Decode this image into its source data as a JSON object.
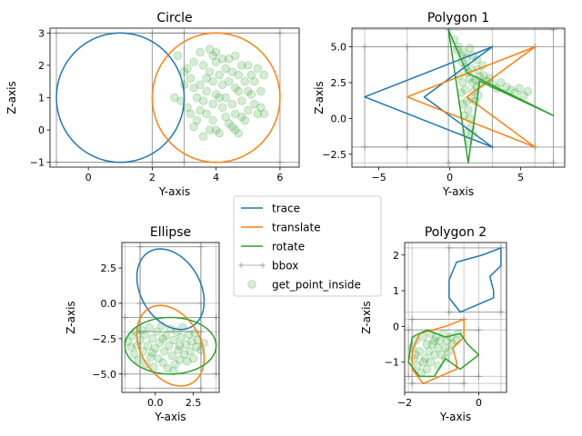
{
  "figure": {
    "background": "#ffffff"
  },
  "colors": {
    "trace": "#1f77b4",
    "translate": "#ff7f0e",
    "rotate": "#2ca02c",
    "bbox": "#7f7f7f",
    "points": "#2ca02c"
  },
  "legend": {
    "placement": "center",
    "entries": [
      {
        "key": "trace",
        "label": "trace",
        "style": "line"
      },
      {
        "key": "translate",
        "label": "translate",
        "style": "line"
      },
      {
        "key": "rotate",
        "label": "rotate",
        "style": "line"
      },
      {
        "key": "bbox",
        "label": "bbox",
        "style": "marker-line"
      },
      {
        "key": "points",
        "label": "get_point_inside",
        "style": "dot"
      }
    ]
  },
  "chart_data": [
    {
      "type": "line",
      "title": "Circle",
      "xlabel": "Y-axis",
      "ylabel": "Z-axis",
      "xlim": [
        -1.2,
        6.6
      ],
      "ylim": [
        -1.15,
        3.15
      ],
      "xticks": [
        0,
        2,
        4,
        6
      ],
      "yticks": [
        -1,
        0,
        1,
        2,
        3
      ],
      "shapes": [
        {
          "name": "trace",
          "kind": "circle",
          "cx": 1,
          "cy": 1,
          "r": 2
        },
        {
          "name": "translate",
          "kind": "circle",
          "cx": 4,
          "cy": 1,
          "r": 2
        }
      ],
      "bboxes": [
        [
          -1,
          -1,
          3,
          3
        ],
        [
          2,
          -1,
          6,
          3
        ]
      ],
      "points": [
        [
          2.7,
          1.0
        ],
        [
          2.8,
          2.3
        ],
        [
          2.9,
          0.9
        ],
        [
          3.0,
          1.4
        ],
        [
          3.0,
          1.8
        ],
        [
          3.1,
          0.7
        ],
        [
          3.1,
          1.9
        ],
        [
          3.2,
          0.5
        ],
        [
          3.2,
          1.6
        ],
        [
          3.3,
          2.1
        ],
        [
          3.3,
          1.3
        ],
        [
          3.4,
          0.3
        ],
        [
          3.4,
          1.0
        ],
        [
          3.5,
          1.4
        ],
        [
          3.5,
          0.6
        ],
        [
          3.5,
          2.4
        ],
        [
          3.6,
          2.0
        ],
        [
          3.6,
          0.9
        ],
        [
          3.6,
          -0.2
        ],
        [
          3.7,
          1.6
        ],
        [
          3.7,
          0.5
        ],
        [
          3.7,
          1.2
        ],
        [
          3.8,
          2.5
        ],
        [
          3.8,
          0.0
        ],
        [
          3.8,
          1.8
        ],
        [
          3.9,
          0.8
        ],
        [
          3.9,
          1.5
        ],
        [
          3.9,
          0.3
        ],
        [
          4.0,
          1.1
        ],
        [
          4.0,
          2.1
        ],
        [
          4.0,
          2.4
        ],
        [
          4.0,
          0.0
        ],
        [
          4.1,
          1.7
        ],
        [
          4.1,
          1.0
        ],
        [
          4.1,
          -0.1
        ],
        [
          4.2,
          1.4
        ],
        [
          4.2,
          2.2
        ],
        [
          4.2,
          0.7
        ],
        [
          4.3,
          0.4
        ],
        [
          4.3,
          1.9
        ],
        [
          4.3,
          1.0
        ],
        [
          4.4,
          0.2
        ],
        [
          4.4,
          2.2
        ],
        [
          4.4,
          1.5
        ],
        [
          4.5,
          1.8
        ],
        [
          4.5,
          0.8
        ],
        [
          4.5,
          0.1
        ],
        [
          4.6,
          1.3
        ],
        [
          4.6,
          0.5
        ],
        [
          4.6,
          2.3
        ],
        [
          4.7,
          -0.1
        ],
        [
          4.7,
          1.2
        ],
        [
          4.7,
          1.7
        ],
        [
          4.8,
          2.0
        ],
        [
          4.8,
          0.9
        ],
        [
          4.8,
          0.4
        ],
        [
          4.9,
          1.5
        ],
        [
          4.9,
          0.3
        ],
        [
          5.0,
          1.2
        ],
        [
          5.0,
          0.6
        ],
        [
          5.0,
          2.0
        ],
        [
          5.1,
          1.1
        ],
        [
          5.2,
          0.8
        ],
        [
          5.2,
          1.5
        ],
        [
          5.3,
          0.5
        ],
        [
          5.3,
          1.9
        ],
        [
          5.4,
          1.2
        ],
        [
          5.4,
          0.7
        ],
        [
          5.5,
          0.5
        ],
        [
          5.5,
          1.7
        ],
        [
          3.3,
          0.1
        ],
        [
          3.9,
          2.3
        ],
        [
          4.6,
          0.0
        ],
        [
          5.1,
          1.7
        ]
      ]
    },
    {
      "type": "line",
      "title": "Polygon 1",
      "xlabel": "Y-axis",
      "ylabel": "Z-axis",
      "xlim": [
        -6.9,
        8.1
      ],
      "ylim": [
        -3.4,
        6.3
      ],
      "xticks": [
        -5,
        0,
        5
      ],
      "yticks": [
        -2.5,
        0.0,
        2.5,
        5.0
      ],
      "shapes": [
        {
          "name": "trace",
          "kind": "polygon",
          "pts": [
            [
              3,
              5
            ],
            [
              -6,
              1.5
            ],
            [
              3,
              -2
            ],
            [
              -1.8,
              1.5
            ],
            [
              3,
              5
            ]
          ]
        },
        {
          "name": "translate",
          "kind": "polygon",
          "pts": [
            [
              6,
              5
            ],
            [
              -3,
              1.5
            ],
            [
              6,
              -2
            ],
            [
              1.2,
              1.5
            ],
            [
              6,
              5
            ]
          ]
        },
        {
          "name": "rotate",
          "kind": "polygon",
          "pts": [
            [
              -0.1,
              6.2
            ],
            [
              1.3,
              -3.1
            ],
            [
              2.1,
              2.6
            ],
            [
              7.3,
              0.2
            ],
            [
              1.2,
              3.2
            ],
            [
              -0.1,
              6.2
            ]
          ]
        }
      ],
      "bboxes": [
        [
          -6,
          -2,
          3,
          5
        ],
        [
          -3,
          -2,
          6,
          5
        ],
        [
          -0.1,
          -3.1,
          7.3,
          6.2
        ]
      ],
      "points": [
        [
          0.3,
          5.5
        ],
        [
          0.5,
          4.8
        ],
        [
          0.6,
          5.0
        ],
        [
          0.8,
          4.4
        ],
        [
          0.9,
          3.9
        ],
        [
          1.0,
          4.6
        ],
        [
          1.1,
          3.6
        ],
        [
          1.2,
          4.2
        ],
        [
          1.3,
          3.2
        ],
        [
          1.4,
          2.8
        ],
        [
          1.5,
          3.5
        ],
        [
          1.6,
          2.5
        ],
        [
          1.7,
          1.9
        ],
        [
          1.8,
          2.7
        ],
        [
          1.9,
          2.2
        ],
        [
          2.0,
          1.6
        ],
        [
          2.1,
          2.9
        ],
        [
          2.2,
          2.4
        ],
        [
          2.4,
          3.0
        ],
        [
          2.6,
          2.6
        ],
        [
          2.8,
          2.8
        ],
        [
          3.0,
          2.4
        ],
        [
          3.3,
          2.1
        ],
        [
          3.6,
          2.5
        ],
        [
          4.0,
          2.2
        ],
        [
          4.3,
          2.0
        ],
        [
          4.6,
          1.8
        ],
        [
          4.9,
          2.1
        ],
        [
          5.2,
          1.6
        ],
        [
          5.5,
          1.9
        ],
        [
          1.2,
          1.2
        ],
        [
          1.3,
          0.6
        ],
        [
          1.4,
          0.0
        ],
        [
          1.5,
          -0.6
        ],
        [
          1.6,
          -1.1
        ],
        [
          1.3,
          -1.6
        ],
        [
          1.1,
          -1.0
        ],
        [
          1.0,
          0.2
        ],
        [
          0.9,
          1.0
        ],
        [
          0.8,
          1.8
        ],
        [
          1.1,
          2.0
        ],
        [
          1.5,
          1.4
        ],
        [
          1.8,
          1.2
        ],
        [
          2.0,
          3.4
        ],
        [
          0.7,
          3.0
        ],
        [
          1.4,
          4.9
        ],
        [
          1.9,
          4.1
        ],
        [
          2.3,
          3.7
        ],
        [
          1.6,
          4.4
        ],
        [
          0.9,
          2.5
        ]
      ]
    },
    {
      "type": "line",
      "title": "Ellipse",
      "xlabel": "Y-axis",
      "ylabel": "Z-axis",
      "xlim": [
        -2.2,
        4.2
      ],
      "ylim": [
        -6.3,
        4.3
      ],
      "xticks": [
        0.0,
        2.5
      ],
      "yticks": [
        -5.0,
        -2.5,
        0.0,
        2.5
      ],
      "shapes": [
        {
          "name": "trace",
          "kind": "ellipse",
          "cx": 1,
          "cy": 1,
          "rx": 2,
          "ry": 3,
          "rotate": 25
        },
        {
          "name": "translate",
          "kind": "ellipse",
          "cx": 1,
          "cy": -3,
          "rx": 2,
          "ry": 3,
          "rotate": 25
        },
        {
          "name": "rotate",
          "kind": "ellipse",
          "cx": 1,
          "cy": -3,
          "rx": 3,
          "ry": 2,
          "rotate": 0
        }
      ],
      "bboxes": [
        [
          -1,
          -2,
          3,
          4
        ],
        [
          -1,
          -6,
          3,
          0
        ],
        [
          -2,
          -5,
          4,
          -1
        ]
      ],
      "points": [
        [
          -1.8,
          -2.7
        ],
        [
          -1.6,
          -3.1
        ],
        [
          -1.5,
          -2.3
        ],
        [
          -1.4,
          -3.6
        ],
        [
          -1.3,
          -2.0
        ],
        [
          -1.2,
          -3.0
        ],
        [
          -1.1,
          -4.0
        ],
        [
          -1.0,
          -2.6
        ],
        [
          -0.9,
          -1.9
        ],
        [
          -0.8,
          -3.4
        ],
        [
          -0.7,
          -2.2
        ],
        [
          -0.6,
          -4.3
        ],
        [
          -0.5,
          -3.0
        ],
        [
          -0.4,
          -1.7
        ],
        [
          -0.3,
          -3.8
        ],
        [
          -0.2,
          -2.5
        ],
        [
          -0.1,
          -4.5
        ],
        [
          0.0,
          -3.2
        ],
        [
          0.1,
          -2.0
        ],
        [
          0.2,
          -3.9
        ],
        [
          0.3,
          -2.8
        ],
        [
          0.4,
          -1.6
        ],
        [
          0.5,
          -4.2
        ],
        [
          0.6,
          -3.4
        ],
        [
          0.7,
          -2.3
        ],
        [
          0.8,
          -4.6
        ],
        [
          0.9,
          -3.0
        ],
        [
          1.0,
          -1.8
        ],
        [
          1.1,
          -3.7
        ],
        [
          1.2,
          -2.6
        ],
        [
          1.3,
          -4.3
        ],
        [
          1.4,
          -2.0
        ],
        [
          1.5,
          -3.3
        ],
        [
          1.6,
          -4.0
        ],
        [
          1.7,
          -2.4
        ],
        [
          1.8,
          -1.7
        ],
        [
          1.9,
          -3.6
        ],
        [
          2.0,
          -2.9
        ],
        [
          2.1,
          -4.1
        ],
        [
          2.2,
          -2.2
        ],
        [
          2.3,
          -3.4
        ],
        [
          2.4,
          -2.7
        ],
        [
          2.5,
          -3.9
        ],
        [
          2.6,
          -2.1
        ],
        [
          2.7,
          -3.1
        ],
        [
          2.8,
          -2.6
        ],
        [
          3.0,
          -3.3
        ],
        [
          3.2,
          -2.8
        ],
        [
          -0.2,
          -3.5
        ],
        [
          0.5,
          -2.5
        ],
        [
          1.2,
          -4.8
        ],
        [
          1.6,
          -3.0
        ]
      ]
    },
    {
      "type": "line",
      "title": "Polygon 2",
      "xlabel": "Y-axis",
      "ylabel": "Z-axis",
      "xlim": [
        -2.0,
        0.75
      ],
      "ylim": [
        -1.85,
        2.35
      ],
      "xticks": [
        -2,
        0
      ],
      "yticks": [
        -1,
        0,
        1,
        2
      ],
      "shapes": [
        {
          "name": "trace",
          "kind": "polygon",
          "pts": [
            [
              0.6,
              2.2
            ],
            [
              0.6,
              1.7
            ],
            [
              0.3,
              1.4
            ],
            [
              0.4,
              1.0
            ],
            [
              0.4,
              0.8
            ],
            [
              -0.5,
              0.4
            ],
            [
              -0.8,
              0.8
            ],
            [
              -0.8,
              1.3
            ],
            [
              -0.6,
              1.8
            ],
            [
              0.1,
              2.0
            ],
            [
              0.6,
              2.2
            ]
          ]
        },
        {
          "name": "translate",
          "kind": "polygon",
          "pts": [
            [
              -0.4,
              0.2
            ],
            [
              -0.4,
              -0.3
            ],
            [
              -0.7,
              -0.6
            ],
            [
              -0.6,
              -1.0
            ],
            [
              -0.6,
              -1.2
            ],
            [
              -1.5,
              -1.6
            ],
            [
              -1.8,
              -1.2
            ],
            [
              -1.8,
              -0.7
            ],
            [
              -1.6,
              -0.2
            ],
            [
              -0.9,
              0.0
            ],
            [
              -0.4,
              0.2
            ]
          ]
        },
        {
          "name": "rotate",
          "kind": "polygon",
          "pts": [
            [
              -1.8,
              -0.3
            ],
            [
              -1.4,
              -0.1
            ],
            [
              -0.9,
              -0.3
            ],
            [
              -0.5,
              -0.2
            ],
            [
              -0.3,
              -0.5
            ],
            [
              0.0,
              -0.8
            ],
            [
              -0.5,
              -1.2
            ],
            [
              -0.9,
              -0.9
            ],
            [
              -1.2,
              -1.4
            ],
            [
              -1.6,
              -1.4
            ],
            [
              -1.9,
              -1.0
            ],
            [
              -1.8,
              -0.3
            ]
          ]
        }
      ],
      "bboxes": [
        [
          -0.8,
          0.4,
          0.6,
          2.2
        ],
        [
          -1.8,
          -1.6,
          -0.4,
          0.2
        ],
        [
          -1.9,
          -1.4,
          0.0,
          -0.1
        ]
      ],
      "points": [
        [
          -1.8,
          -0.6
        ],
        [
          -1.75,
          -0.9
        ],
        [
          -1.7,
          -0.4
        ],
        [
          -1.65,
          -1.1
        ],
        [
          -1.6,
          -0.7
        ],
        [
          -1.55,
          -1.3
        ],
        [
          -1.5,
          -0.3
        ],
        [
          -1.45,
          -0.9
        ],
        [
          -1.4,
          -0.5
        ],
        [
          -1.4,
          -1.2
        ],
        [
          -1.35,
          -0.7
        ],
        [
          -1.3,
          -0.2
        ],
        [
          -1.3,
          -1.0
        ],
        [
          -1.25,
          -0.5
        ],
        [
          -1.2,
          -0.8
        ],
        [
          -1.15,
          -0.3
        ],
        [
          -1.1,
          -0.6
        ],
        [
          -1.1,
          -1.1
        ],
        [
          -1.05,
          -0.4
        ],
        [
          -1.0,
          -0.8
        ],
        [
          -0.95,
          -0.2
        ],
        [
          -0.9,
          -0.6
        ],
        [
          -0.85,
          -0.4
        ],
        [
          -0.8,
          -0.7
        ],
        [
          -0.75,
          -0.3
        ],
        [
          -0.7,
          -0.5
        ],
        [
          -0.6,
          -0.4
        ],
        [
          -0.55,
          -0.2
        ],
        [
          -1.7,
          -0.8
        ],
        [
          -1.5,
          -1.0
        ],
        [
          -1.2,
          -0.4
        ],
        [
          -0.9,
          -0.9
        ]
      ]
    }
  ]
}
